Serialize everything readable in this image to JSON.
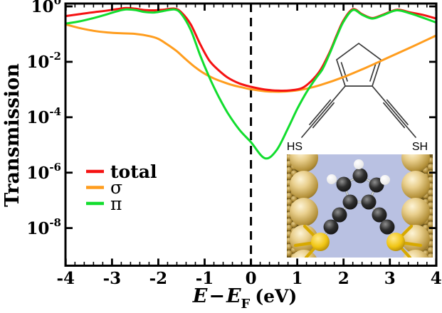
{
  "figure": {
    "y_axis_label": "Transmission",
    "x_axis_label": "E − E_F (eV)",
    "x_label_parts": {
      "e1": "E",
      "minus": "−",
      "e2": "E",
      "sub": "F",
      "unit": "(eV)"
    }
  },
  "chart_data": {
    "type": "line",
    "title": "",
    "xlabel": "E − E_F (eV)",
    "ylabel": "Transmission",
    "x_range": [
      -4,
      4
    ],
    "y_scale": "log",
    "y_range_exponents": [
      -9.37,
      0.1
    ],
    "x_ticks": [
      -4,
      -3,
      -2,
      -1,
      0,
      1,
      2,
      3,
      4
    ],
    "x_tick_labels": [
      "-4",
      "-3",
      "-2",
      "-1",
      "0",
      "1",
      "2",
      "3",
      "4"
    ],
    "x_minor_tick_step": 0.2,
    "y_tick_exponents": [
      0,
      -2,
      -4,
      -6,
      -8
    ],
    "y_tick_labels": [
      {
        "base": "10",
        "exp": "0"
      },
      {
        "base": "10",
        "exp": "-2"
      },
      {
        "base": "10",
        "exp": "-4"
      },
      {
        "base": "10",
        "exp": "-6"
      },
      {
        "base": "10",
        "exp": "-8"
      }
    ],
    "fermi_dashed_line_x": 0,
    "grid": false,
    "legend_position": "lower-left",
    "legend": [
      {
        "label": "total",
        "color": "#f51212"
      },
      {
        "label": "σ",
        "color": "#ff9d1e"
      },
      {
        "label": "π",
        "color": "#12dd2e"
      }
    ],
    "series": [
      {
        "name": "sigma",
        "color": "#ff9d1e",
        "points_E_log10T": [
          [
            -4,
            -0.65
          ],
          [
            -3.7,
            -0.78
          ],
          [
            -3.4,
            -0.88
          ],
          [
            -3.1,
            -0.94
          ],
          [
            -2.8,
            -0.97
          ],
          [
            -2.5,
            -0.99
          ],
          [
            -2.2,
            -1.07
          ],
          [
            -2,
            -1.17
          ],
          [
            -1.8,
            -1.38
          ],
          [
            -1.6,
            -1.62
          ],
          [
            -1.4,
            -1.92
          ],
          [
            -1.2,
            -2.2
          ],
          [
            -1,
            -2.43
          ],
          [
            -0.8,
            -2.6
          ],
          [
            -0.6,
            -2.73
          ],
          [
            -0.4,
            -2.84
          ],
          [
            -0.2,
            -2.92
          ],
          [
            0,
            -2.99
          ],
          [
            0.3,
            -3.06
          ],
          [
            0.6,
            -3.08
          ],
          [
            0.9,
            -3.05
          ],
          [
            1.2,
            -2.97
          ],
          [
            1.5,
            -2.84
          ],
          [
            2,
            -2.55
          ],
          [
            2.5,
            -2.2
          ],
          [
            3,
            -1.82
          ],
          [
            3.5,
            -1.44
          ],
          [
            4,
            -1.05
          ]
        ]
      },
      {
        "name": "total",
        "color": "#f51212",
        "points_E_log10T": [
          [
            -4,
            -0.35
          ],
          [
            -3.7,
            -0.28
          ],
          [
            -3.4,
            -0.21
          ],
          [
            -3.1,
            -0.15
          ],
          [
            -2.9,
            -0.1
          ],
          [
            -2.7,
            -0.06
          ],
          [
            -2.5,
            -0.08
          ],
          [
            -2.3,
            -0.13
          ],
          [
            -2.1,
            -0.14
          ],
          [
            -1.9,
            -0.12
          ],
          [
            -1.65,
            -0.08
          ],
          [
            -1.5,
            -0.22
          ],
          [
            -1.3,
            -0.65
          ],
          [
            -1.1,
            -1.35
          ],
          [
            -0.9,
            -1.95
          ],
          [
            -0.7,
            -2.3
          ],
          [
            -0.5,
            -2.57
          ],
          [
            -0.25,
            -2.78
          ],
          [
            0,
            -2.9
          ],
          [
            0.3,
            -3.0
          ],
          [
            0.6,
            -3.04
          ],
          [
            0.85,
            -3.03
          ],
          [
            1.1,
            -2.95
          ],
          [
            1.3,
            -2.7
          ],
          [
            1.5,
            -2.3
          ],
          [
            1.7,
            -1.65
          ],
          [
            1.85,
            -1.05
          ],
          [
            2,
            -0.5
          ],
          [
            2.2,
            -0.1
          ],
          [
            2.4,
            -0.28
          ],
          [
            2.62,
            -0.42
          ],
          [
            2.85,
            -0.3
          ],
          [
            3.15,
            -0.12
          ],
          [
            3.45,
            -0.22
          ],
          [
            3.7,
            -0.3
          ],
          [
            4,
            -0.44
          ]
        ]
      },
      {
        "name": "pi",
        "color": "#12dd2e",
        "points_E_log10T": [
          [
            -4,
            -0.62
          ],
          [
            -3.7,
            -0.54
          ],
          [
            -3.4,
            -0.42
          ],
          [
            -3.1,
            -0.28
          ],
          [
            -2.9,
            -0.18
          ],
          [
            -2.7,
            -0.11
          ],
          [
            -2.5,
            -0.13
          ],
          [
            -2.3,
            -0.2
          ],
          [
            -2.1,
            -0.22
          ],
          [
            -1.9,
            -0.17
          ],
          [
            -1.65,
            -0.11
          ],
          [
            -1.5,
            -0.28
          ],
          [
            -1.3,
            -0.85
          ],
          [
            -1.1,
            -1.75
          ],
          [
            -0.9,
            -2.55
          ],
          [
            -0.7,
            -3.25
          ],
          [
            -0.5,
            -3.85
          ],
          [
            -0.25,
            -4.45
          ],
          [
            0,
            -4.9
          ],
          [
            0.3,
            -5.48
          ],
          [
            0.55,
            -5.2
          ],
          [
            0.8,
            -4.4
          ],
          [
            1,
            -3.7
          ],
          [
            1.2,
            -3.1
          ],
          [
            1.4,
            -2.6
          ],
          [
            1.55,
            -2.25
          ],
          [
            1.7,
            -1.7
          ],
          [
            1.85,
            -1.1
          ],
          [
            2,
            -0.55
          ],
          [
            2.2,
            -0.13
          ],
          [
            2.4,
            -0.3
          ],
          [
            2.62,
            -0.44
          ],
          [
            2.85,
            -0.32
          ],
          [
            3.15,
            -0.14
          ],
          [
            3.45,
            -0.26
          ],
          [
            3.7,
            -0.4
          ],
          [
            4,
            -0.58
          ]
        ]
      }
    ]
  },
  "molecule_diagram": {
    "left_label": "HS",
    "right_label": "SH"
  },
  "junction_inset": {
    "background_color": "#b9c1e2",
    "gold_color": "#c9a85c",
    "sulfur_color": "#edc413",
    "carbon_color": "#1c1c1c",
    "hydrogen_color": "#f4f4f4"
  }
}
